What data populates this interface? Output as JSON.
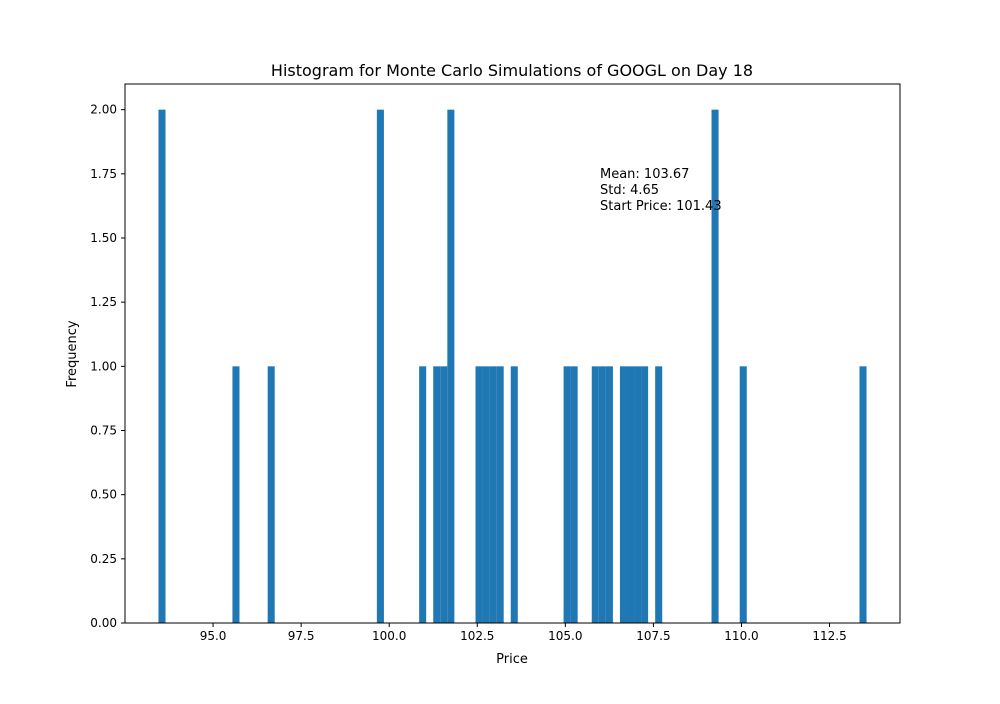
{
  "chart_data": {
    "type": "bar",
    "title": "Histogram for Monte Carlo Simulations of GOOGL on Day 18",
    "xlabel": "Price",
    "ylabel": "Frequency",
    "xlim": [
      92.5,
      114.5
    ],
    "ylim": [
      0,
      2.1
    ],
    "xticks": [
      "95.0",
      "97.5",
      "100.0",
      "102.5",
      "105.0",
      "107.5",
      "110.0",
      "112.5"
    ],
    "yticks": [
      "0.00",
      "0.25",
      "0.50",
      "0.75",
      "1.00",
      "1.25",
      "1.50",
      "1.75",
      "2.00"
    ],
    "bar_color": "#1f77b4",
    "bin_width": 0.2,
    "bins": [
      {
        "x": 93.55,
        "count": 2
      },
      {
        "x": 95.65,
        "count": 1
      },
      {
        "x": 96.65,
        "count": 1
      },
      {
        "x": 99.75,
        "count": 2
      },
      {
        "x": 100.95,
        "count": 1
      },
      {
        "x": 101.35,
        "count": 1
      },
      {
        "x": 101.55,
        "count": 1
      },
      {
        "x": 101.75,
        "count": 2
      },
      {
        "x": 102.55,
        "count": 1
      },
      {
        "x": 102.75,
        "count": 1
      },
      {
        "x": 102.95,
        "count": 1
      },
      {
        "x": 103.15,
        "count": 1
      },
      {
        "x": 103.55,
        "count": 1
      },
      {
        "x": 105.05,
        "count": 1
      },
      {
        "x": 105.25,
        "count": 1
      },
      {
        "x": 105.85,
        "count": 1
      },
      {
        "x": 106.05,
        "count": 1
      },
      {
        "x": 106.25,
        "count": 1
      },
      {
        "x": 106.65,
        "count": 1
      },
      {
        "x": 106.85,
        "count": 1
      },
      {
        "x": 107.05,
        "count": 1
      },
      {
        "x": 107.25,
        "count": 1
      },
      {
        "x": 107.65,
        "count": 1
      },
      {
        "x": 109.25,
        "count": 2
      },
      {
        "x": 110.05,
        "count": 1
      },
      {
        "x": 113.45,
        "count": 1
      }
    ],
    "annotations": [
      "Mean: 103.67",
      "Std: 4.65",
      "Start Price: 101.43"
    ],
    "grid": false,
    "legend": "none"
  }
}
